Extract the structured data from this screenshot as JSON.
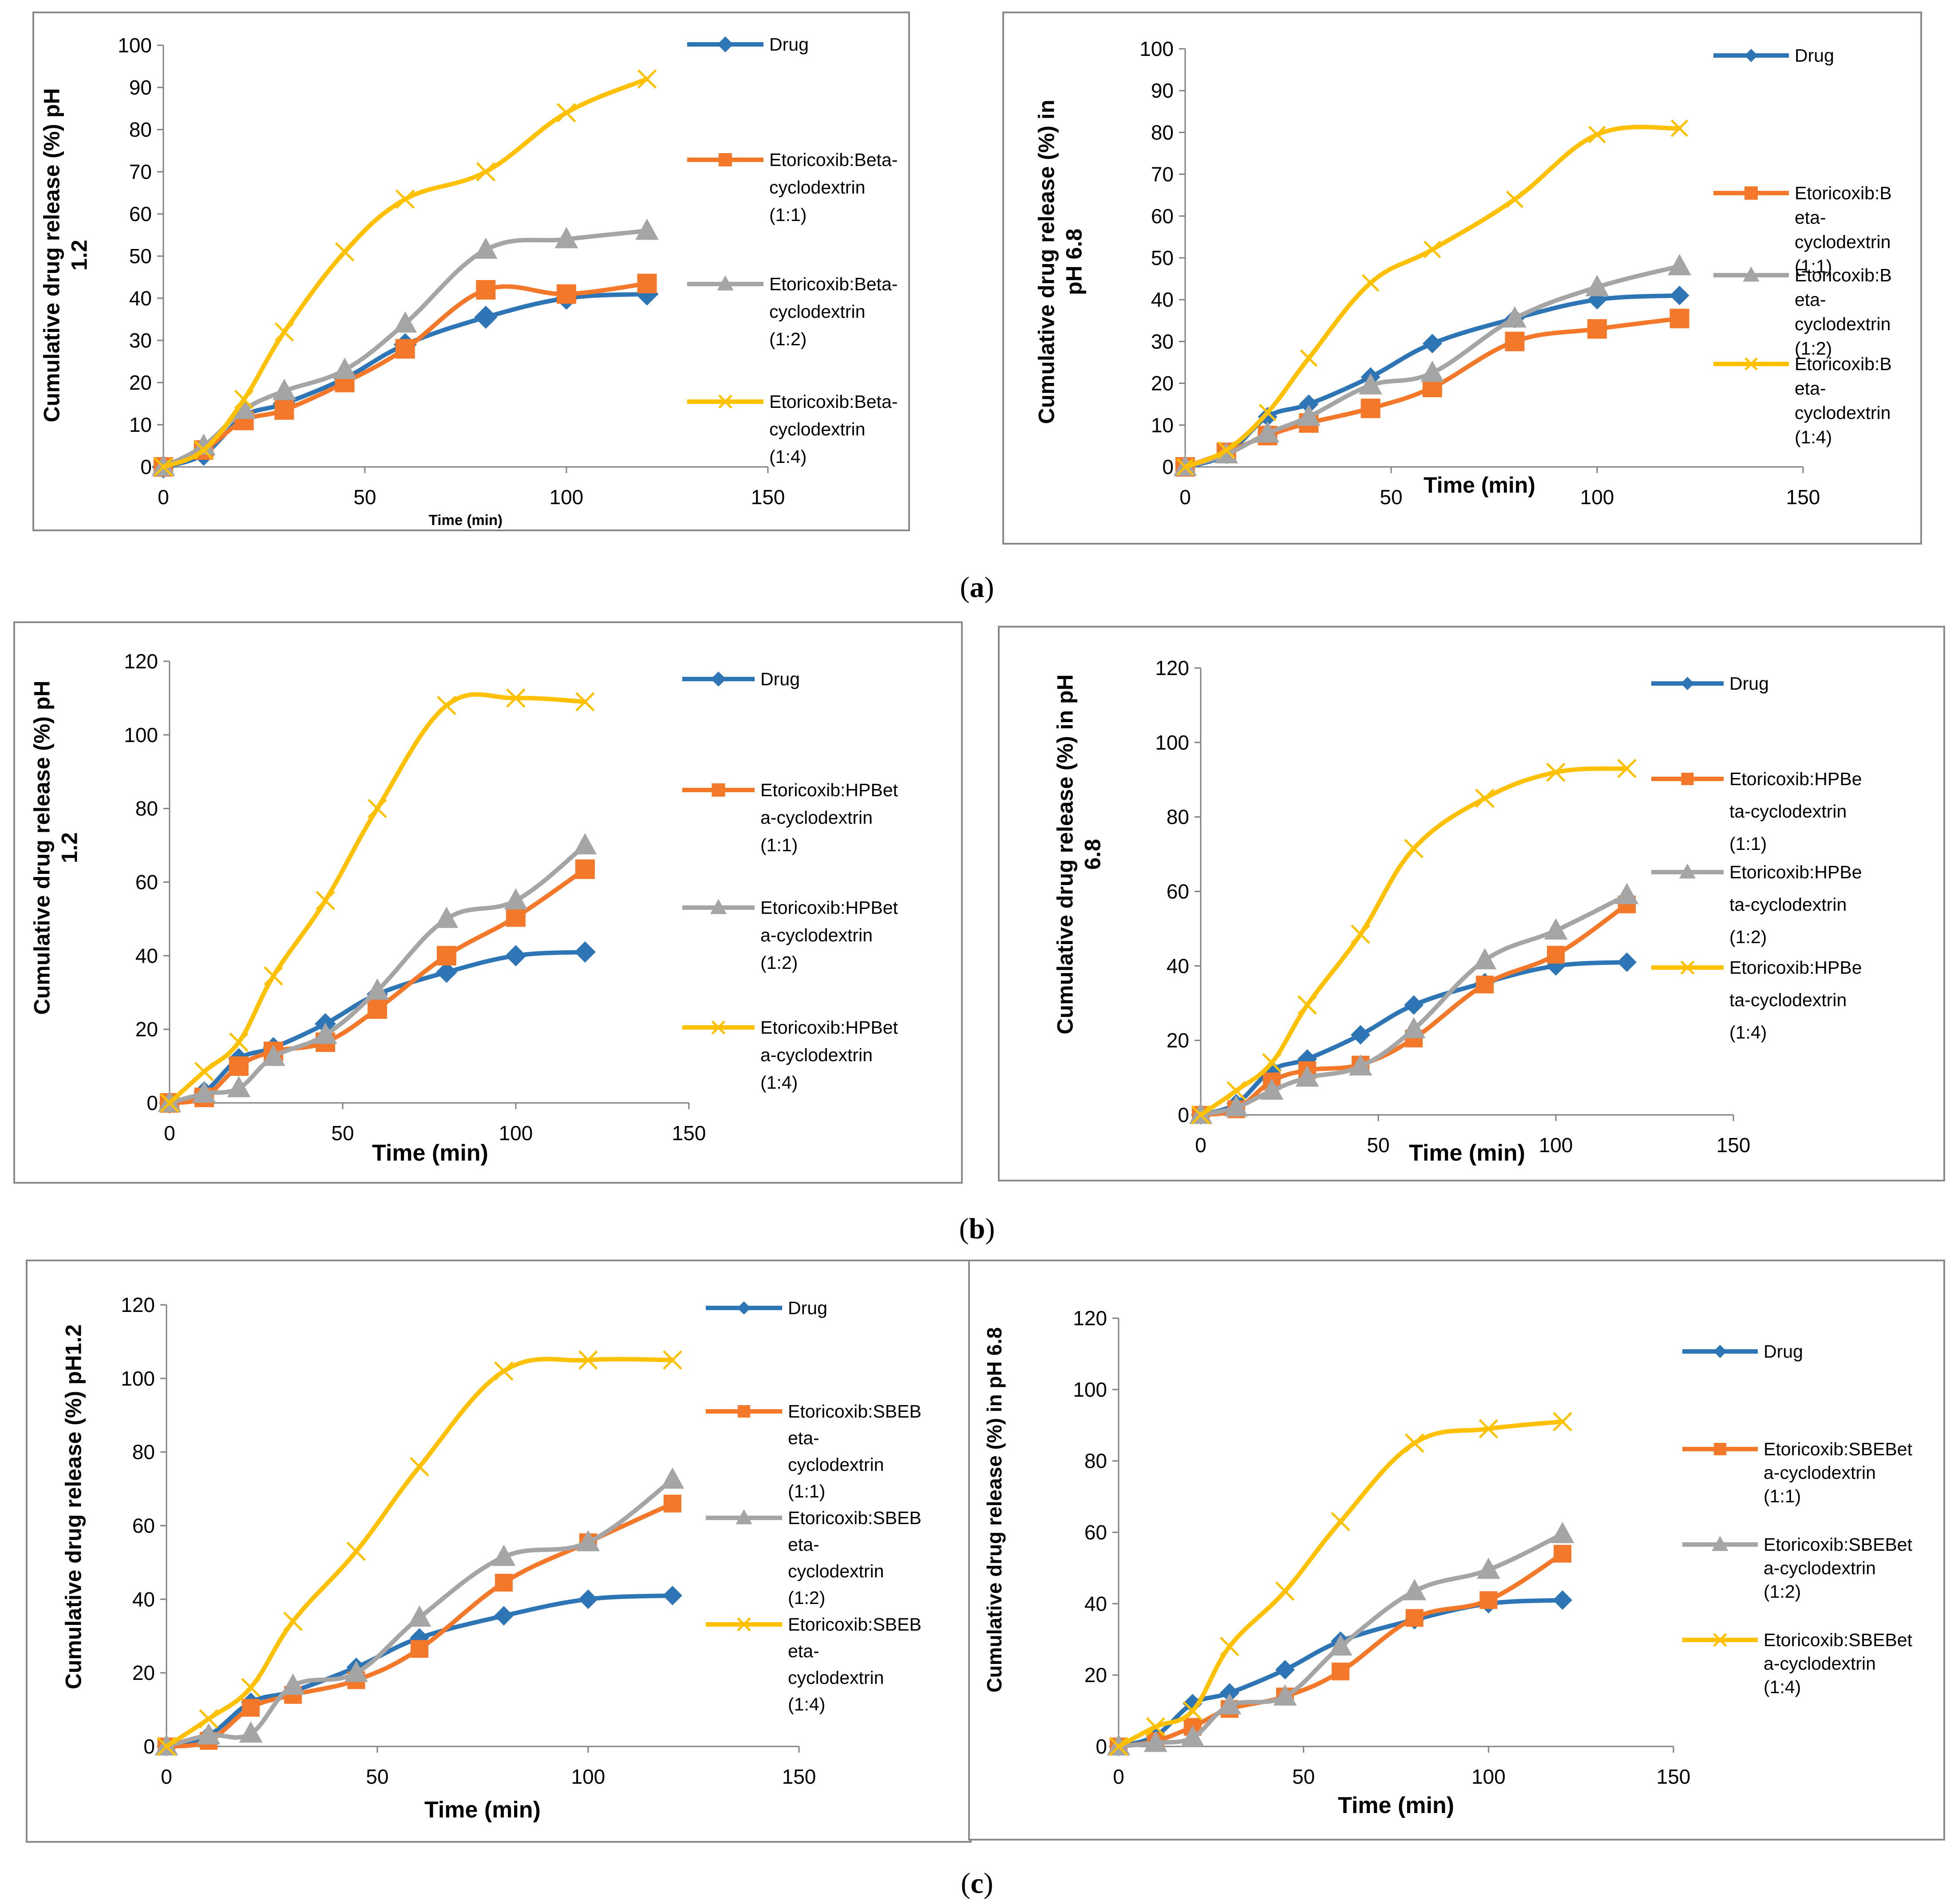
{
  "figure_labels": [
    "(a)",
    "(b)",
    "(c)"
  ],
  "colors": {
    "drug": "#2E75B6",
    "ratio_1_1": "#F4782A",
    "ratio_1_2": "#A5A5A5",
    "ratio_1_4": "#FFC000",
    "frame": "#8a8a8a"
  },
  "chart_data": [
    {
      "type": "line",
      "title": "",
      "xlabel": "Time (min)",
      "ylabel": [
        "Cumulative drug release (%) pH",
        "1.2"
      ],
      "xlim": [
        0,
        150
      ],
      "ylim": [
        0,
        100
      ],
      "xticks": [
        0,
        50,
        100,
        150
      ],
      "yticks": [
        0,
        10,
        20,
        30,
        40,
        50,
        60,
        70,
        80,
        90,
        100
      ],
      "grid": false,
      "legend": "right",
      "series": [
        {
          "name": "Drug",
          "legend_lines": [
            "Drug"
          ],
          "marker": "diamond",
          "color": "#2E75B6",
          "x": [
            0,
            10,
            20,
            30,
            45,
            60,
            80,
            100,
            120
          ],
          "values": [
            0,
            3,
            12,
            15,
            21,
            29,
            35.5,
            40,
            41
          ]
        },
        {
          "name": "Etoricoxib:Beta-cyclodextrin (1:1)",
          "legend_lines": [
            "Etoricoxib:Beta-",
            "cyclodextrin",
            "(1:1)"
          ],
          "marker": "square",
          "color": "#F4782A",
          "x": [
            0,
            10,
            20,
            30,
            45,
            60,
            80,
            100,
            120
          ],
          "values": [
            0,
            4,
            11,
            13.5,
            20,
            28,
            42,
            41,
            43.5
          ]
        },
        {
          "name": "Etoricoxib:Beta-cyclodextrin (1:2)",
          "legend_lines": [
            "Etoricoxib:Beta-",
            "cyclodextrin",
            "(1:2)"
          ],
          "marker": "triangle",
          "color": "#A5A5A5",
          "x": [
            0,
            10,
            20,
            30,
            45,
            60,
            80,
            100,
            120
          ],
          "values": [
            0,
            5,
            13.5,
            18,
            23,
            34,
            51.5,
            54,
            56
          ]
        },
        {
          "name": "Etoricoxib:Beta-cyclodextrin (1:4)",
          "legend_lines": [
            "Etoricoxib:Beta-",
            "cyclodextrin",
            "(1:4)"
          ],
          "marker": "x",
          "color": "#FFC000",
          "x": [
            0,
            10,
            20,
            30,
            45,
            60,
            80,
            100,
            120
          ],
          "values": [
            0,
            4,
            16,
            32,
            51,
            63.5,
            70,
            84,
            92
          ]
        }
      ]
    },
    {
      "type": "line",
      "title": "",
      "xlabel": "Time (min)",
      "ylabel": [
        "Cumulative drug release (%) in",
        "pH 6.8"
      ],
      "xlim": [
        0,
        150
      ],
      "ylim": [
        0,
        100
      ],
      "xticks": [
        0,
        50,
        100,
        150
      ],
      "yticks": [
        0,
        10,
        20,
        30,
        40,
        50,
        60,
        70,
        80,
        90,
        100
      ],
      "grid": false,
      "legend": "right",
      "series": [
        {
          "name": "Drug",
          "legend_lines": [
            "Drug"
          ],
          "marker": "diamond",
          "color": "#2E75B6",
          "x": [
            0,
            10,
            20,
            30,
            45,
            60,
            80,
            100,
            120
          ],
          "values": [
            0,
            3,
            12,
            15,
            21.5,
            29.5,
            35.5,
            40,
            41
          ]
        },
        {
          "name": "Etoricoxib:Beta-cyclodextrin (1:1)",
          "legend_lines": [
            "Etoricoxib:B",
            "eta-",
            "cyclodextrin",
            "(1:1)"
          ],
          "marker": "square",
          "color": "#F4782A",
          "x": [
            0,
            10,
            20,
            30,
            45,
            60,
            80,
            100,
            120
          ],
          "values": [
            0,
            3.5,
            7.5,
            10.5,
            14,
            19,
            30,
            33,
            35.5
          ]
        },
        {
          "name": "Etoricoxib:Beta-cyclodextrin (1:2)",
          "legend_lines": [
            "Etoricoxib:B",
            "eta-",
            "cyclodextrin",
            "(1:2)"
          ],
          "marker": "triangle",
          "color": "#A5A5A5",
          "x": [
            0,
            10,
            20,
            30,
            45,
            60,
            80,
            100,
            120
          ],
          "values": [
            0,
            3,
            8,
            12,
            19.5,
            22.5,
            35.5,
            43,
            48
          ]
        },
        {
          "name": "Etoricoxib:Beta-cyclodextrin (1:4)",
          "legend_lines": [
            "Etoricoxib:B",
            "eta-",
            "cyclodextrin",
            "(1:4)"
          ],
          "marker": "x",
          "color": "#FFC000",
          "x": [
            0,
            10,
            20,
            30,
            45,
            60,
            80,
            100,
            120
          ],
          "values": [
            0,
            4,
            13,
            26,
            44,
            52,
            64,
            79.5,
            81
          ]
        }
      ]
    },
    {
      "type": "line",
      "title": "",
      "xlabel": "Time (min)",
      "ylabel": [
        "Cumulative drug release (%) pH",
        "1.2"
      ],
      "xlim": [
        0,
        150
      ],
      "ylim": [
        0,
        120
      ],
      "xticks": [
        0,
        50,
        100,
        150
      ],
      "yticks": [
        0,
        20,
        40,
        60,
        80,
        100,
        120
      ],
      "grid": false,
      "legend": "right",
      "series": [
        {
          "name": "Drug",
          "legend_lines": [
            "Drug"
          ],
          "marker": "diamond",
          "color": "#2E75B6",
          "x": [
            0,
            10,
            20,
            30,
            45,
            60,
            80,
            100,
            120
          ],
          "values": [
            0,
            3,
            12,
            15,
            21.5,
            29.5,
            35.5,
            40,
            41
          ]
        },
        {
          "name": "Etoricoxib:HPBeta-cyclodextrin (1:1)",
          "legend_lines": [
            "Etoricoxib:HPBet",
            "a-cyclodextrin",
            "(1:1)"
          ],
          "marker": "square",
          "color": "#F4782A",
          "x": [
            0,
            10,
            20,
            30,
            45,
            60,
            80,
            100,
            120
          ],
          "values": [
            0,
            1.5,
            10,
            14,
            16.5,
            25.5,
            40,
            50.5,
            63.5
          ]
        },
        {
          "name": "Etoricoxib:HPBeta-cyclodextrin (1:2)",
          "legend_lines": [
            "Etoricoxib:HPBet",
            "a-cyclodextrin",
            "(1:2)"
          ],
          "marker": "triangle",
          "color": "#A5A5A5",
          "x": [
            0,
            10,
            20,
            30,
            45,
            60,
            80,
            100,
            120
          ],
          "values": [
            0,
            2.5,
            4,
            12.5,
            18.5,
            30.5,
            50,
            55,
            70
          ]
        },
        {
          "name": "Etoricoxib:HPBeta-cyclodextrin (1:4)",
          "legend_lines": [
            "Etoricoxib:HPBet",
            "a-cyclodextrin",
            "(1:4)"
          ],
          "marker": "x",
          "color": "#FFC000",
          "x": [
            0,
            10,
            20,
            30,
            45,
            60,
            80,
            100,
            120
          ],
          "values": [
            0,
            8.5,
            16.5,
            34.5,
            55,
            80,
            108,
            110,
            109
          ]
        }
      ]
    },
    {
      "type": "line",
      "title": "",
      "xlabel": "Time (min)",
      "ylabel": [
        "Cumulative drug release (%) in pH",
        "6.8"
      ],
      "xlim": [
        0,
        150
      ],
      "ylim": [
        0,
        120
      ],
      "xticks": [
        0,
        50,
        100,
        150
      ],
      "yticks": [
        0,
        20,
        40,
        60,
        80,
        100,
        120
      ],
      "grid": false,
      "legend": "right",
      "series": [
        {
          "name": "Drug",
          "legend_lines": [
            "Drug"
          ],
          "marker": "diamond",
          "color": "#2E75B6",
          "x": [
            0,
            10,
            20,
            30,
            45,
            60,
            80,
            100,
            120
          ],
          "values": [
            0,
            3,
            12,
            15,
            21.5,
            29.5,
            35.5,
            40,
            41
          ]
        },
        {
          "name": "Etoricoxib:HPBeta-cyclodextrin (1:1)",
          "legend_lines": [
            "Etoricoxib:HPBe",
            "ta-cyclodextrin",
            "(1:1)"
          ],
          "marker": "square",
          "color": "#F4782A",
          "x": [
            0,
            10,
            20,
            30,
            45,
            60,
            80,
            100,
            120
          ],
          "values": [
            0,
            1.5,
            9,
            12,
            13.5,
            20.5,
            35,
            43,
            56.5
          ]
        },
        {
          "name": "Etoricoxib:HPBeta-cyclodextrin (1:2)",
          "legend_lines": [
            "Etoricoxib:HPBe",
            "ta-cyclodextrin",
            "(1:2)"
          ],
          "marker": "triangle",
          "color": "#A5A5A5",
          "x": [
            0,
            10,
            20,
            30,
            45,
            60,
            80,
            100,
            120
          ],
          "values": [
            0,
            2,
            6.5,
            10,
            13,
            23,
            41.5,
            49.5,
            59
          ]
        },
        {
          "name": "Etoricoxib:HPBeta-cyclodextrin (1:4)",
          "legend_lines": [
            "Etoricoxib:HPBe",
            "ta-cyclodextrin",
            "(1:4)"
          ],
          "marker": "x",
          "color": "#FFC000",
          "x": [
            0,
            10,
            20,
            30,
            45,
            60,
            80,
            100,
            120
          ],
          "values": [
            0,
            6.5,
            14,
            29.5,
            48.5,
            71.5,
            85,
            92,
            93
          ]
        }
      ]
    },
    {
      "type": "line",
      "title": "",
      "xlabel": "Time (min)",
      "ylabel": [
        "Cumulative drug release (%) pH1.2"
      ],
      "xlim": [
        0,
        150
      ],
      "ylim": [
        0,
        120
      ],
      "xticks": [
        0,
        50,
        100,
        150
      ],
      "yticks": [
        0,
        20,
        40,
        60,
        80,
        100,
        120
      ],
      "grid": false,
      "legend": "right",
      "series": [
        {
          "name": "Drug",
          "legend_lines": [
            "Drug"
          ],
          "marker": "diamond",
          "color": "#2E75B6",
          "x": [
            0,
            10,
            20,
            30,
            45,
            60,
            80,
            100,
            120
          ],
          "values": [
            0,
            3,
            12,
            15,
            21.5,
            29.5,
            35.5,
            40,
            41
          ]
        },
        {
          "name": "Etoricoxib:SBEBeta-cyclodextrin (1:1)",
          "legend_lines": [
            "Etoricoxib:SBEB",
            "eta-",
            "cyclodextrin",
            "(1:1)"
          ],
          "marker": "square",
          "color": "#F4782A",
          "x": [
            0,
            10,
            20,
            30,
            45,
            60,
            80,
            100,
            120
          ],
          "values": [
            0,
            1.5,
            10.5,
            14,
            18,
            26.5,
            44.5,
            55.5,
            66
          ]
        },
        {
          "name": "Etoricoxib:SBEBeta-cyclodextrin (1:2)",
          "legend_lines": [
            "Etoricoxib:SBEB",
            "eta-",
            "cyclodextrin",
            "(1:2)"
          ],
          "marker": "triangle",
          "color": "#A5A5A5",
          "x": [
            0,
            10,
            20,
            30,
            45,
            60,
            80,
            100,
            120
          ],
          "values": [
            0,
            3,
            3.5,
            16.5,
            20,
            35,
            51.5,
            55.5,
            72.5
          ]
        },
        {
          "name": "Etoricoxib:SBEBeta-cyclodextrin (1:4)",
          "legend_lines": [
            "Etoricoxib:SBEB",
            "eta-",
            "cyclodextrin",
            "(1:4)"
          ],
          "marker": "x",
          "color": "#FFC000",
          "x": [
            0,
            10,
            20,
            30,
            45,
            60,
            80,
            100,
            120
          ],
          "values": [
            0,
            7.5,
            16,
            34,
            53,
            76,
            102,
            105,
            105
          ]
        }
      ]
    },
    {
      "type": "line",
      "title": "",
      "xlabel": "Time (min)",
      "ylabel": [
        "Cumulative drug release (%) in pH 6.8"
      ],
      "xlim": [
        0,
        150
      ],
      "ylim": [
        0,
        120
      ],
      "xticks": [
        0,
        50,
        100,
        150
      ],
      "yticks": [
        0,
        20,
        40,
        60,
        80,
        100,
        120
      ],
      "grid": false,
      "legend": "right",
      "series": [
        {
          "name": "Drug",
          "legend_lines": [
            "Drug"
          ],
          "marker": "diamond",
          "color": "#2E75B6",
          "x": [
            0,
            10,
            20,
            30,
            45,
            60,
            80,
            100,
            120
          ],
          "values": [
            0,
            3,
            12,
            15,
            21.5,
            29.5,
            35.5,
            40,
            41
          ]
        },
        {
          "name": "Etoricoxib:SBEBeta-cyclodextrin (1:1)",
          "legend_lines": [
            "Etoricoxib:SBEBet",
            "a-cyclodextrin",
            "(1:1)"
          ],
          "marker": "square",
          "color": "#F4782A",
          "x": [
            0,
            10,
            20,
            30,
            45,
            60,
            80,
            100,
            120
          ],
          "values": [
            0,
            1.5,
            5.5,
            10.5,
            14,
            21,
            36,
            41,
            54
          ]
        },
        {
          "name": "Etoricoxib:SBEBeta-cyclodextrin (1:2)",
          "legend_lines": [
            "Etoricoxib:SBEBet",
            "a-cyclodextrin",
            "(1:2)"
          ],
          "marker": "triangle",
          "color": "#A5A5A5",
          "x": [
            0,
            10,
            20,
            30,
            45,
            60,
            80,
            100,
            120
          ],
          "values": [
            0,
            1,
            2.5,
            11.5,
            14,
            28,
            43.5,
            49.5,
            59.5
          ]
        },
        {
          "name": "Etoricoxib:SBEBeta-cyclodextrin (1:4)",
          "legend_lines": [
            "Etoricoxib:SBEBet",
            "a-cyclodextrin",
            "(1:4)"
          ],
          "marker": "x",
          "color": "#FFC000",
          "x": [
            0,
            10,
            20,
            30,
            45,
            60,
            80,
            100,
            120
          ],
          "values": [
            0,
            5.5,
            10,
            28,
            43.5,
            63,
            85,
            89,
            91
          ]
        }
      ]
    }
  ]
}
